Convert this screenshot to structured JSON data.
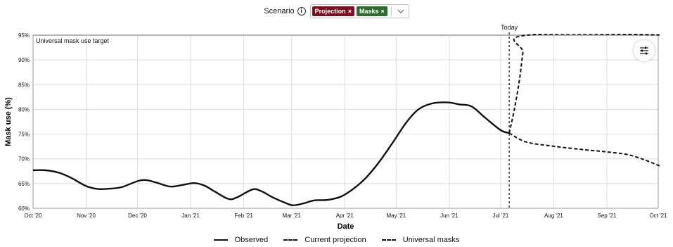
{
  "scenario": {
    "label": "Scenario",
    "info_icon": "info-icon",
    "chips": [
      {
        "label": "Projection",
        "remove": "×",
        "color": "#7a1020"
      },
      {
        "label": "Masks",
        "remove": "×",
        "color": "#2e6b2e"
      }
    ],
    "dropdown_icon": "chevron-down-icon"
  },
  "settings_icon": "sliders-icon",
  "chart_data": {
    "type": "line",
    "xlabel": "Date",
    "ylabel": "Mask use (%)",
    "ylim": [
      60,
      95
    ],
    "xlim": [
      "2020-10-01",
      "2021-10-01"
    ],
    "yticks": [
      60,
      65,
      70,
      75,
      80,
      85,
      90,
      95
    ],
    "ytick_labels": [
      "60%",
      "65%",
      "70%",
      "75%",
      "80%",
      "85%",
      "90%",
      "95%"
    ],
    "xticks": [
      "2020-10-01",
      "2020-11-01",
      "2020-12-01",
      "2021-01-01",
      "2021-02-01",
      "2021-03-01",
      "2021-04-01",
      "2021-05-01",
      "2021-06-01",
      "2021-07-01",
      "2021-08-01",
      "2021-09-01",
      "2021-10-01"
    ],
    "xtick_labels": [
      "Oct '20",
      "Nov '20",
      "Dec '20",
      "Jan '21",
      "Feb '21",
      "Mar '21",
      "Apr '21",
      "May '21",
      "Jun '21",
      "Jul '21",
      "Aug '21",
      "Sep '21",
      "Oct '21"
    ],
    "grid": true,
    "legend_position": "bottom",
    "reference_line": {
      "value": 95,
      "label": "Universal mask use target"
    },
    "today": {
      "date": "2021-07-06",
      "label": "Today"
    },
    "series": [
      {
        "name": "Observed",
        "style": "solid",
        "points": [
          [
            "2020-10-01",
            67.7
          ],
          [
            "2020-10-08",
            67.7
          ],
          [
            "2020-10-16",
            67.2
          ],
          [
            "2020-10-23",
            66.2
          ],
          [
            "2020-11-01",
            64.5
          ],
          [
            "2020-11-08",
            63.9
          ],
          [
            "2020-11-16",
            64.0
          ],
          [
            "2020-11-22",
            64.3
          ],
          [
            "2020-12-01",
            65.5
          ],
          [
            "2020-12-06",
            65.7
          ],
          [
            "2020-12-12",
            65.2
          ],
          [
            "2020-12-20",
            64.4
          ],
          [
            "2020-12-27",
            64.7
          ],
          [
            "2021-01-03",
            65.1
          ],
          [
            "2021-01-09",
            64.6
          ],
          [
            "2021-01-15",
            63.4
          ],
          [
            "2021-01-23",
            61.9
          ],
          [
            "2021-01-28",
            62.2
          ],
          [
            "2021-02-06",
            63.8
          ],
          [
            "2021-02-11",
            63.5
          ],
          [
            "2021-02-18",
            62.2
          ],
          [
            "2021-02-26",
            61.0
          ],
          [
            "2021-03-02",
            60.6
          ],
          [
            "2021-03-08",
            61.0
          ],
          [
            "2021-03-14",
            61.6
          ],
          [
            "2021-03-22",
            61.7
          ],
          [
            "2021-03-30",
            62.4
          ],
          [
            "2021-04-07",
            64.2
          ],
          [
            "2021-04-14",
            66.4
          ],
          [
            "2021-04-22",
            69.8
          ],
          [
            "2021-04-30",
            73.8
          ],
          [
            "2021-05-07",
            77.4
          ],
          [
            "2021-05-14",
            80.0
          ],
          [
            "2021-05-22",
            81.2
          ],
          [
            "2021-05-31",
            81.4
          ],
          [
            "2021-06-07",
            81.0
          ],
          [
            "2021-06-14",
            80.6
          ],
          [
            "2021-06-22",
            78.3
          ],
          [
            "2021-07-01",
            75.8
          ],
          [
            "2021-07-06",
            75.2
          ]
        ]
      },
      {
        "name": "Current projection",
        "style": "dashed",
        "points": [
          [
            "2021-07-06",
            75.2
          ],
          [
            "2021-07-16",
            73.4
          ],
          [
            "2021-08-02",
            72.5
          ],
          [
            "2021-08-20",
            71.8
          ],
          [
            "2021-09-01",
            71.4
          ],
          [
            "2021-09-15",
            70.7
          ],
          [
            "2021-10-01",
            68.7
          ],
          [
            "2021-10-15",
            66.4
          ]
        ]
      },
      {
        "name": "Universal masks",
        "style": "dashed",
        "points": [
          [
            "2021-07-06",
            75.2
          ],
          [
            "2021-07-09",
            80.0
          ],
          [
            "2021-07-12",
            86.0
          ],
          [
            "2021-07-14",
            91.5
          ],
          [
            "2021-07-16",
            95.0
          ],
          [
            "2021-10-15",
            95.0
          ]
        ]
      }
    ]
  }
}
